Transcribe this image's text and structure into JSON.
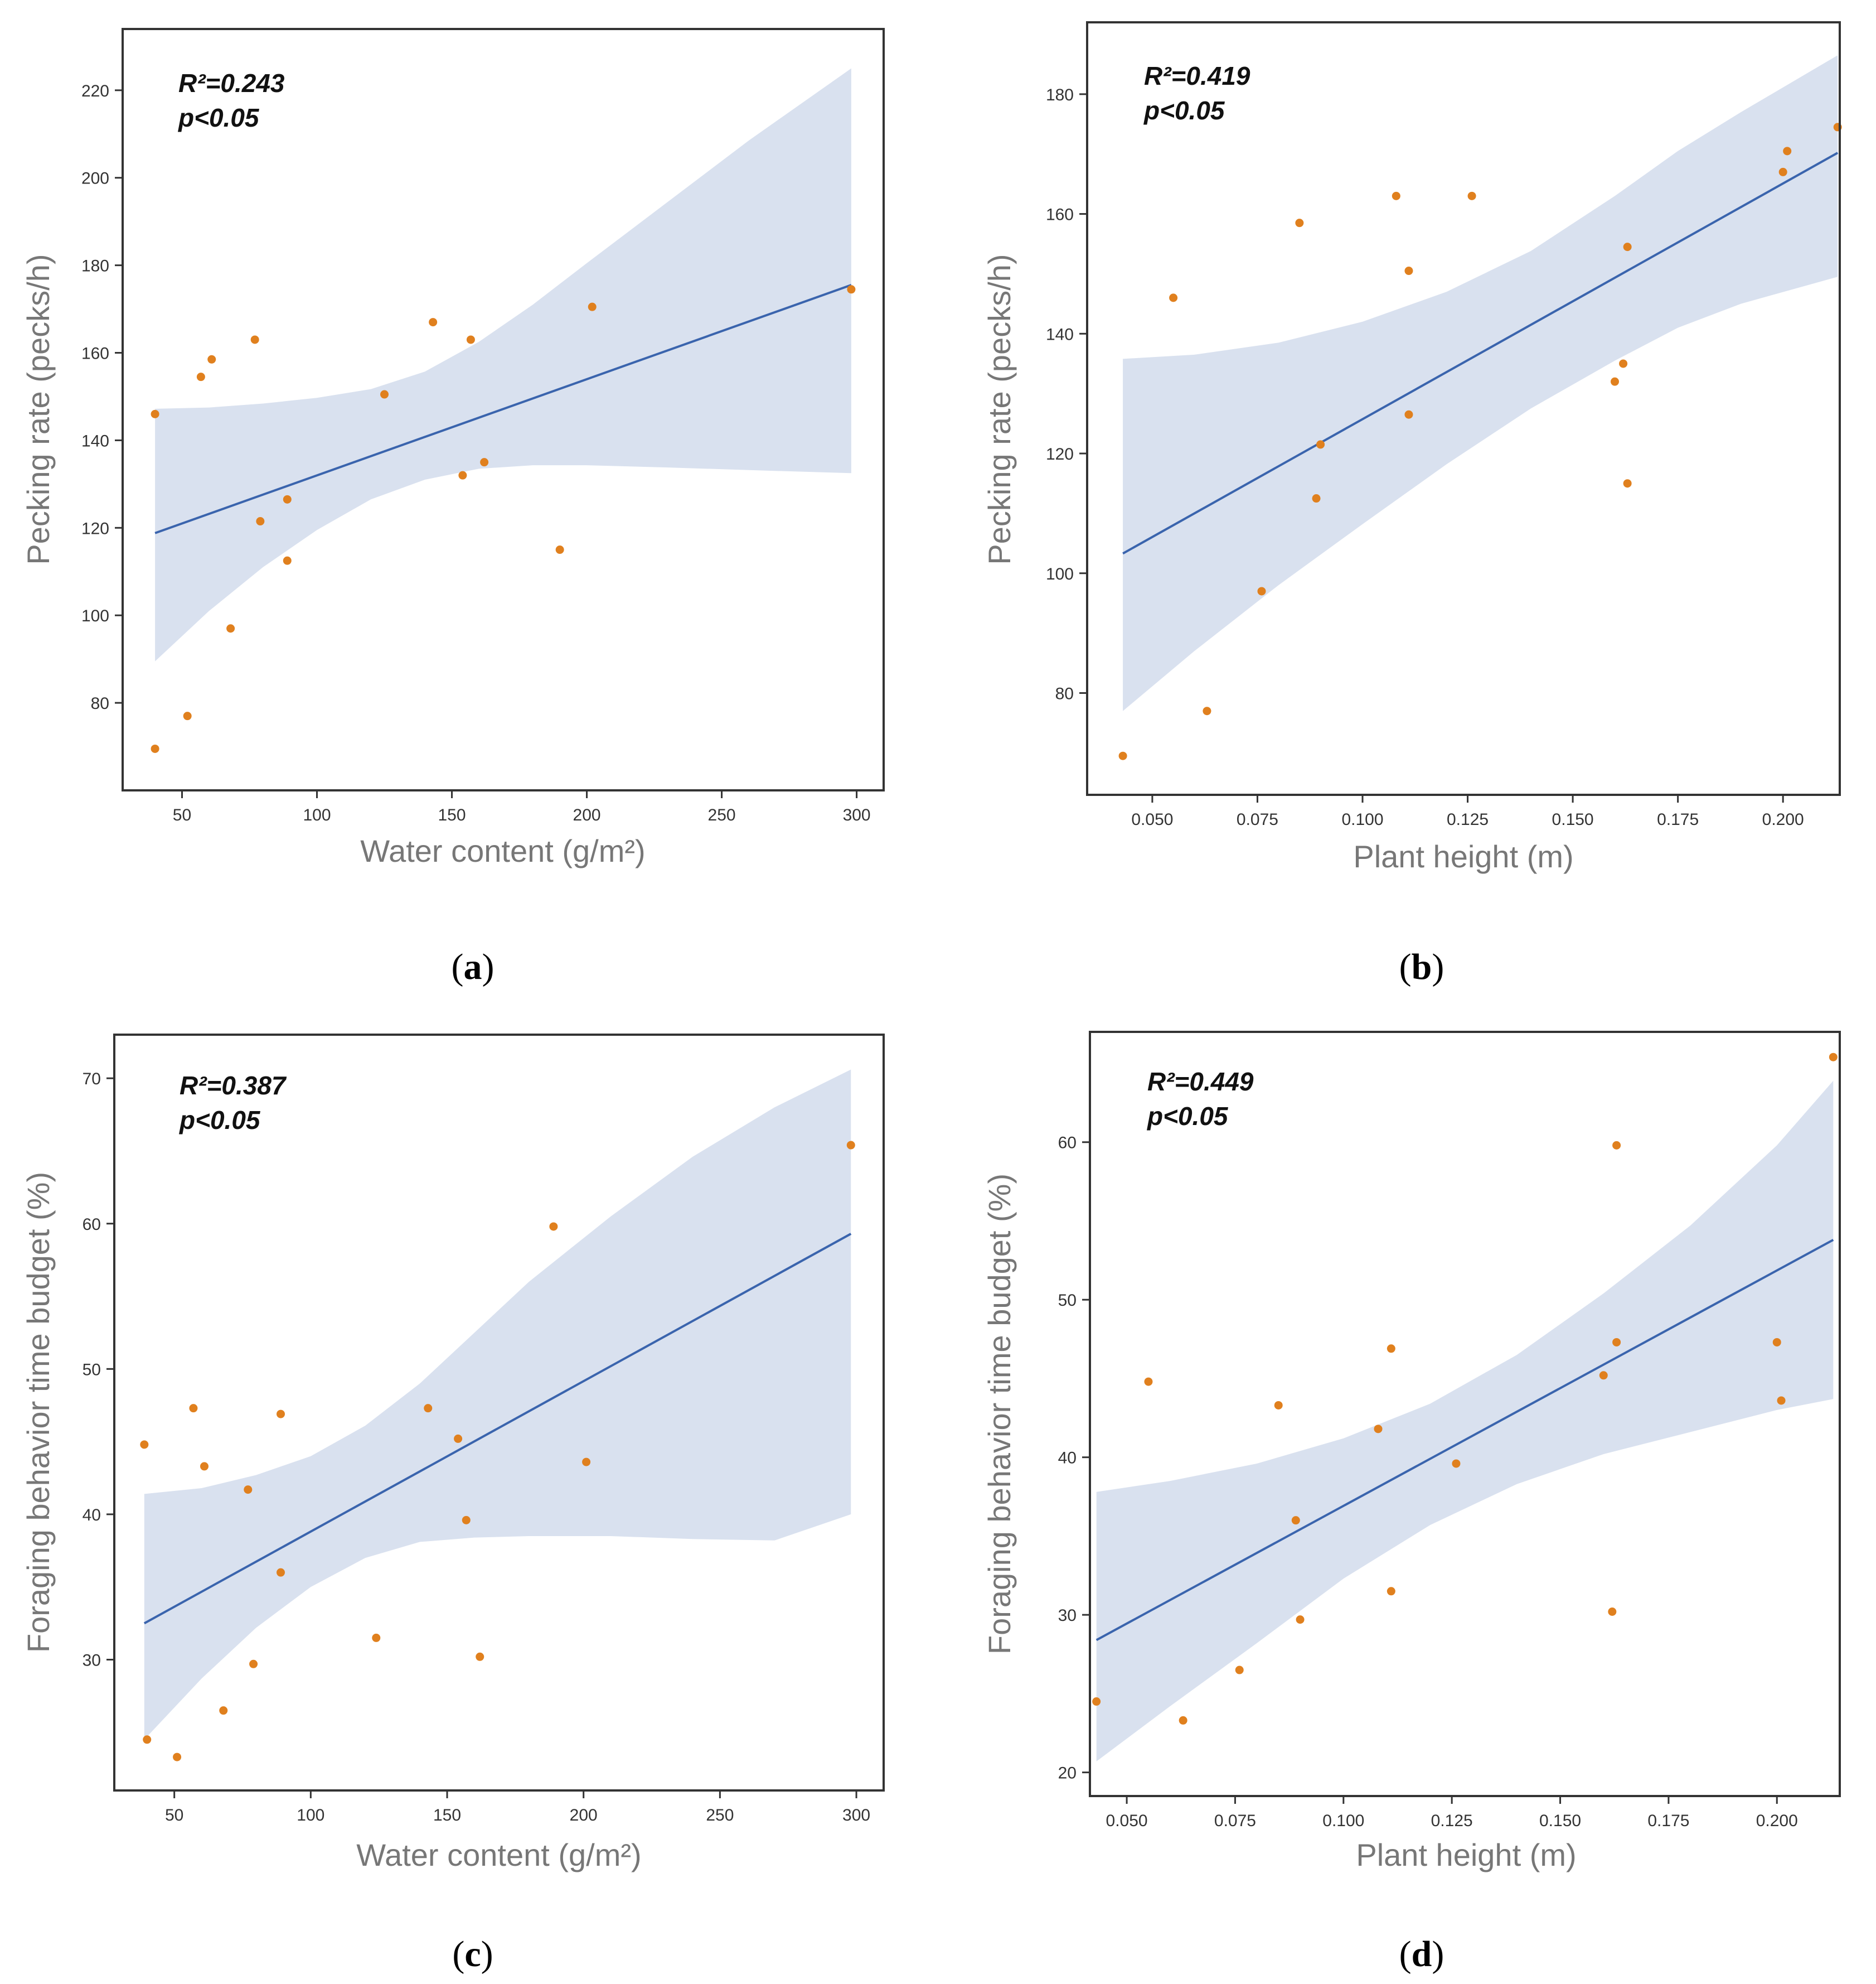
{
  "colors": {
    "point": "#e0801e",
    "line": "#3a64ad",
    "band": "#d9e1ef",
    "frame": "#333333"
  },
  "chart_data": [
    {
      "type": "scatter",
      "label": "a",
      "stats": [
        "R²=0.243",
        "p<0.05"
      ],
      "xlabel": "Water content (g/m²)",
      "ylabel": "Pecking rate (pecks/h)",
      "xlim": [
        28,
        310
      ],
      "ylim": [
        60,
        234
      ],
      "xticks": [
        50,
        100,
        150,
        200,
        250,
        300
      ],
      "yticks": [
        80,
        100,
        120,
        140,
        160,
        180,
        200,
        220
      ],
      "points": [
        [
          40,
          146
        ],
        [
          40,
          69.5
        ],
        [
          52,
          77
        ],
        [
          57,
          154.5
        ],
        [
          61,
          158.5
        ],
        [
          68,
          97
        ],
        [
          77,
          163
        ],
        [
          79,
          121.5
        ],
        [
          89,
          112.5
        ],
        [
          89,
          126.5
        ],
        [
          125,
          150.5
        ],
        [
          143,
          167
        ],
        [
          154,
          132
        ],
        [
          157,
          163
        ],
        [
          162,
          135
        ],
        [
          190,
          115
        ],
        [
          202,
          170.5
        ],
        [
          298,
          174.5
        ]
      ],
      "fit": [
        [
          40,
          118.8
        ],
        [
          298,
          175.5
        ]
      ],
      "band": [
        [
          40,
          89.5,
          147.2
        ],
        [
          60,
          101,
          147.5
        ],
        [
          80,
          111,
          148.4
        ],
        [
          100,
          119.5,
          149.7
        ],
        [
          120,
          126.5,
          151.7
        ],
        [
          140,
          131,
          155.7
        ],
        [
          160,
          133.5,
          162.5
        ],
        [
          180,
          134.3,
          171
        ],
        [
          200,
          134.3,
          180.5
        ],
        [
          230,
          133.8,
          194.5
        ],
        [
          260,
          133.2,
          208.5
        ],
        [
          298,
          132.5,
          225
        ]
      ]
    },
    {
      "type": "scatter",
      "label": "b",
      "stats": [
        "R²=0.419",
        "p<0.05"
      ],
      "xlabel": "Plant height (m)",
      "ylabel": "Pecking rate (pecks/h)",
      "xlim": [
        0.0345,
        0.2135
      ],
      "ylim": [
        63,
        192
      ],
      "xticks": [
        0.05,
        0.075,
        0.1,
        0.125,
        0.15,
        0.175,
        0.2
      ],
      "tick_labels": [
        "0.050",
        "0.075",
        "0.100",
        "0.125",
        "0.150",
        "0.175",
        "0.200"
      ],
      "yticks": [
        80,
        100,
        120,
        140,
        160,
        180
      ],
      "points": [
        [
          0.043,
          69.5
        ],
        [
          0.055,
          146
        ],
        [
          0.063,
          77
        ],
        [
          0.076,
          97
        ],
        [
          0.085,
          158.5
        ],
        [
          0.089,
          112.5
        ],
        [
          0.09,
          121.5
        ],
        [
          0.108,
          163
        ],
        [
          0.111,
          126.5
        ],
        [
          0.111,
          150.5
        ],
        [
          0.126,
          163
        ],
        [
          0.16,
          132
        ],
        [
          0.162,
          135
        ],
        [
          0.163,
          154.5
        ],
        [
          0.163,
          115
        ],
        [
          0.2,
          167
        ],
        [
          0.201,
          170.5
        ],
        [
          0.213,
          174.5
        ]
      ],
      "fit": [
        [
          0.043,
          103.3
        ],
        [
          0.213,
          170.2
        ]
      ],
      "band": [
        [
          0.043,
          77,
          135.8
        ],
        [
          0.06,
          87,
          136.5
        ],
        [
          0.08,
          98,
          138.5
        ],
        [
          0.1,
          108.2,
          142
        ],
        [
          0.12,
          118.2,
          147
        ],
        [
          0.14,
          127.5,
          153.8
        ],
        [
          0.16,
          135.5,
          163
        ],
        [
          0.175,
          141,
          170.5
        ],
        [
          0.19,
          145,
          177
        ],
        [
          0.213,
          149.5,
          186.5
        ]
      ]
    },
    {
      "type": "scatter",
      "label": "c",
      "stats": [
        "R²=0.387",
        "p<0.05"
      ],
      "xlabel": "Water content (g/m²)",
      "ylabel": "Foraging behavior time budget (%)",
      "xlim": [
        28,
        310
      ],
      "ylim": [
        21,
        73
      ],
      "xticks": [
        50,
        100,
        150,
        200,
        250,
        300
      ],
      "yticks": [
        30,
        40,
        50,
        60,
        70
      ],
      "points": [
        [
          39,
          44.8
        ],
        [
          40,
          24.5
        ],
        [
          51,
          23.3
        ],
        [
          57,
          47.3
        ],
        [
          61,
          43.3
        ],
        [
          68,
          26.5
        ],
        [
          77,
          41.7
        ],
        [
          79,
          29.7
        ],
        [
          89,
          46.9
        ],
        [
          89,
          36
        ],
        [
          124,
          31.5
        ],
        [
          143,
          47.3
        ],
        [
          154,
          45.2
        ],
        [
          157,
          39.6
        ],
        [
          162,
          30.2
        ],
        [
          189,
          59.8
        ],
        [
          201,
          43.6
        ],
        [
          298,
          65.4
        ]
      ],
      "fit": [
        [
          39,
          32.5
        ],
        [
          298,
          59.3
        ]
      ],
      "band": [
        [
          39,
          24.5,
          41.4
        ],
        [
          60,
          28.7,
          41.8
        ],
        [
          80,
          32.2,
          42.7
        ],
        [
          100,
          35,
          44
        ],
        [
          120,
          37,
          46.1
        ],
        [
          140,
          38.1,
          49
        ],
        [
          160,
          38.4,
          52.5
        ],
        [
          180,
          38.5,
          56
        ],
        [
          210,
          38.5,
          60.5
        ],
        [
          240,
          38.3,
          64.6
        ],
        [
          270,
          38.2,
          68
        ],
        [
          298,
          40,
          70.6
        ]
      ]
    },
    {
      "type": "scatter",
      "label": "d",
      "stats": [
        "R²=0.449",
        "p<0.05"
      ],
      "xlabel": "Plant height (m)",
      "ylabel": "Foraging behavior time budget (%)",
      "xlim": [
        0.0415,
        0.2145
      ],
      "ylim": [
        18.5,
        67
      ],
      "xticks": [
        0.05,
        0.075,
        0.1,
        0.125,
        0.15,
        0.175,
        0.2
      ],
      "tick_labels": [
        "0.050",
        "0.075",
        "0.100",
        "0.125",
        "0.150",
        "0.175",
        "0.200"
      ],
      "yticks": [
        20,
        30,
        40,
        50,
        60
      ],
      "points": [
        [
          0.043,
          24.5
        ],
        [
          0.055,
          44.8
        ],
        [
          0.063,
          23.3
        ],
        [
          0.076,
          26.5
        ],
        [
          0.085,
          43.3
        ],
        [
          0.089,
          36
        ],
        [
          0.09,
          29.7
        ],
        [
          0.108,
          41.8
        ],
        [
          0.111,
          31.5
        ],
        [
          0.111,
          46.9
        ],
        [
          0.126,
          39.6
        ],
        [
          0.16,
          45.2
        ],
        [
          0.162,
          30.2
        ],
        [
          0.163,
          59.8
        ],
        [
          0.163,
          47.3
        ],
        [
          0.2,
          47.3
        ],
        [
          0.201,
          43.6
        ],
        [
          0.213,
          65.4
        ]
      ],
      "fit": [
        [
          0.043,
          28.4
        ],
        [
          0.213,
          53.8
        ]
      ],
      "band": [
        [
          0.043,
          20.7,
          37.8
        ],
        [
          0.06,
          24.2,
          38.5
        ],
        [
          0.08,
          28.2,
          39.6
        ],
        [
          0.1,
          32.3,
          41.2
        ],
        [
          0.12,
          35.7,
          43.4
        ],
        [
          0.14,
          38.3,
          46.5
        ],
        [
          0.16,
          40.2,
          50.4
        ],
        [
          0.18,
          41.6,
          54.7
        ],
        [
          0.2,
          43,
          59.8
        ],
        [
          0.213,
          43.7,
          63.9
        ]
      ]
    }
  ]
}
